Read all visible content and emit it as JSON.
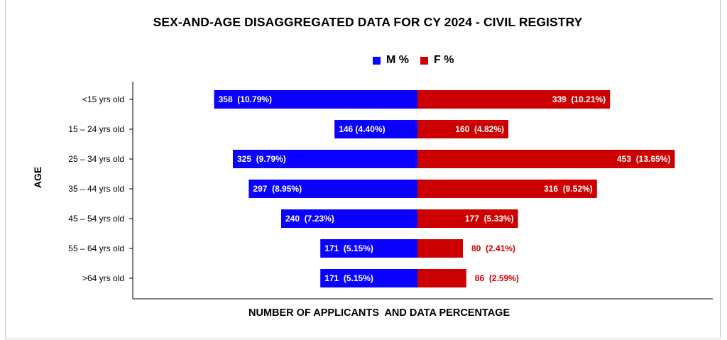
{
  "title": "SEX-AND-AGE DISAGGREGATED DATA FOR CY 2024 - CIVIL REGISTRY",
  "legend": [
    {
      "name": "M %",
      "color": "#0a00ff"
    },
    {
      "name": "F %",
      "color": "#cc0000"
    }
  ],
  "chart_data": {
    "type": "bar",
    "orientation": "horizontal-diverging",
    "title": "SEX-AND-AGE DISAGGREGATED DATA FOR CY 2024 - CIVIL REGISTRY",
    "xlabel": "NUMBER OF APPLICANTS  AND DATA PERCENTAGE",
    "ylabel": "AGE",
    "categories": [
      "<15 yrs old",
      "15 – 24 yrs old",
      "25 – 34 yrs old",
      "35 – 44 yrs old",
      "45 – 54 yrs old",
      "55 – 64 yrs old",
      ">64 yrs old"
    ],
    "legend_position": "top",
    "grid": false,
    "series": [
      {
        "name": "M %",
        "color": "#0a00ff",
        "values": [
          358,
          146,
          325,
          297,
          240,
          171,
          171
        ],
        "labels": [
          "358  (10.79%)",
          "146 (4.40%)",
          "325  (9.79%)",
          "297  (8.95%)",
          "240  (7.23%)",
          "171  (5.15%)",
          "171  (5.15%)"
        ]
      },
      {
        "name": "F %",
        "color": "#cc0000",
        "values": [
          339,
          160,
          453,
          316,
          177,
          80,
          86
        ],
        "labels": [
          "339  (10.21%)",
          "160  (4.82%)",
          "453  (13.65%)",
          "316  (9.52%)",
          "177  (5.33%)",
          "80  (2.41%)",
          "86  (2.59%)"
        ]
      }
    ]
  }
}
